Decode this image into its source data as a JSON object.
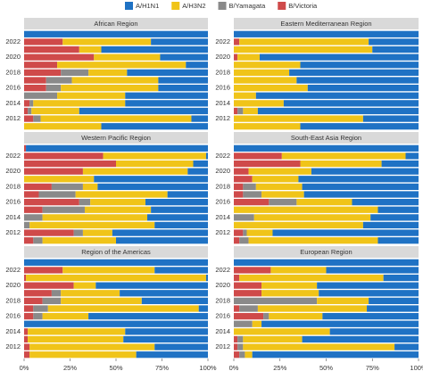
{
  "chart_data": {
    "type": "bar",
    "series": [
      {
        "name": "A/H1N1",
        "color": "#1f72c4"
      },
      {
        "name": "A/H3N2",
        "color": "#f0c419"
      },
      {
        "name": "B/Yamagata",
        "color": "#8a8a8a"
      },
      {
        "name": "B/Victoria",
        "color": "#cf4a4a"
      }
    ],
    "categories": [
      null,
      "2012",
      null,
      "2014",
      null,
      "2016",
      null,
      "2018",
      null,
      "2020",
      null,
      "2022",
      null
    ],
    "xlim": [
      0,
      100
    ],
    "xticks": [
      {
        "value": 0,
        "label": "0%"
      },
      {
        "value": 25,
        "label": "25%"
      },
      {
        "value": 50,
        "label": "50%"
      },
      {
        "value": 75,
        "label": "75%"
      },
      {
        "value": 100,
        "label": "100%"
      }
    ],
    "panels": [
      {
        "title": "African Region",
        "values": [
          [
            58,
            9,
            70,
            45,
            45,
            27,
            27,
            44,
            12,
            26,
            58,
            31,
            100
          ],
          [
            42,
            82,
            26,
            50,
            37,
            53,
            47,
            21,
            70,
            36,
            12,
            48,
            0
          ],
          [
            0,
            4,
            2,
            2,
            18,
            8,
            14,
            15,
            0,
            0,
            0,
            0,
            0
          ],
          [
            0,
            5,
            2,
            3,
            0,
            12,
            12,
            20,
            18,
            38,
            30,
            21,
            0
          ]
        ]
      },
      {
        "title": "Eastern Mediterranean Region",
        "values": [
          [
            64,
            30,
            87,
            73,
            88,
            60,
            66,
            70,
            64,
            86,
            25,
            27,
            100
          ],
          [
            36,
            70,
            8,
            27,
            12,
            40,
            34,
            30,
            36,
            12,
            75,
            70,
            0
          ],
          [
            0,
            0,
            3,
            0,
            0,
            0,
            0,
            0,
            0,
            0,
            0,
            0,
            0
          ],
          [
            0,
            0,
            2,
            0,
            0,
            0,
            0,
            0,
            0,
            2,
            0,
            3,
            0
          ]
        ]
      },
      {
        "title": "Western Pacific Region",
        "values": [
          [
            50,
            52,
            29,
            33,
            31,
            34,
            22,
            60,
            62,
            11,
            8,
            1,
            99
          ],
          [
            40,
            16,
            68,
            57,
            36,
            30,
            50,
            8,
            38,
            57,
            42,
            56,
            0
          ],
          [
            5,
            5,
            3,
            10,
            23,
            6,
            20,
            17,
            0,
            0,
            0,
            0,
            0
          ],
          [
            5,
            27,
            0,
            0,
            10,
            30,
            8,
            15,
            0,
            32,
            50,
            43,
            1
          ]
        ]
      },
      {
        "title": "South-East Asia Region",
        "values": [
          [
            22,
            79,
            30,
            26,
            22,
            36,
            62,
            63,
            65,
            58,
            20,
            7,
            100
          ],
          [
            70,
            14,
            70,
            63,
            78,
            30,
            23,
            25,
            25,
            34,
            44,
            67,
            0
          ],
          [
            5,
            2,
            0,
            11,
            0,
            15,
            10,
            7,
            0,
            0,
            0,
            0,
            0
          ],
          [
            3,
            5,
            0,
            0,
            0,
            19,
            5,
            5,
            10,
            8,
            36,
            26,
            0
          ]
        ]
      },
      {
        "title": "Region of the Americas",
        "values": [
          [
            39,
            29,
            46,
            45,
            100,
            65,
            5,
            36,
            48,
            61,
            1,
            29,
            100
          ],
          [
            58,
            68,
            52,
            53,
            0,
            25,
            82,
            44,
            32,
            12,
            98,
            50,
            0
          ],
          [
            0,
            0,
            0,
            0,
            0,
            5,
            8,
            10,
            5,
            0,
            0,
            0,
            0
          ],
          [
            3,
            3,
            2,
            2,
            0,
            5,
            5,
            10,
            15,
            27,
            1,
            21,
            0
          ]
        ]
      },
      {
        "title": "European Region",
        "values": [
          [
            90,
            13,
            63,
            48,
            85,
            52,
            28,
            27,
            54,
            55,
            19,
            50,
            100
          ],
          [
            4,
            82,
            32,
            52,
            5,
            29,
            59,
            28,
            31,
            30,
            78,
            30,
            0
          ],
          [
            3,
            3,
            3,
            0,
            10,
            3,
            10,
            45,
            0,
            0,
            0,
            0,
            0
          ],
          [
            3,
            2,
            2,
            0,
            0,
            16,
            3,
            0,
            15,
            15,
            3,
            20,
            0
          ]
        ]
      }
    ]
  }
}
